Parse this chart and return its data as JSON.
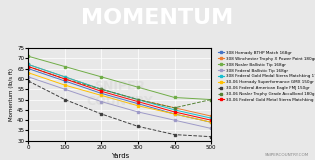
{
  "title": "MOMENTUM",
  "xlabel": "Yards",
  "ylabel": "Momentum (lb/s ft)",
  "background_title": "#5a5a5a",
  "background_plot": "#e8e8e8",
  "accent_bar": "#c0392b",
  "ylim": [
    30,
    75
  ],
  "xlim": [
    0,
    500
  ],
  "xticks": [
    0,
    100,
    200,
    300,
    400,
    500
  ],
  "yticks": [
    30,
    35,
    40,
    45,
    50,
    55,
    60,
    65,
    70,
    75
  ],
  "series": [
    {
      "label": "308 Hornady BTHP Match 168gr",
      "color": "#4472c4",
      "marker": "s",
      "dashed": false,
      "values": [
        65,
        59,
        53,
        48,
        43,
        39
      ]
    },
    {
      "label": "308 Winchester Trophy X Power Point 180gr",
      "color": "#ed7d31",
      "marker": "s",
      "dashed": false,
      "values": [
        67,
        61,
        55,
        50,
        46,
        42
      ]
    },
    {
      "label": "308 Nosler Ballistic Tip 168gr",
      "color": "#70ad47",
      "marker": "s",
      "dashed": false,
      "values": [
        71,
        66,
        61,
        56,
        51,
        50
      ]
    },
    {
      "label": "308 Federal Ballistic Tip 168gr",
      "color": "#9e9ac8",
      "marker": "s",
      "dashed": false,
      "values": [
        61,
        55,
        49,
        44,
        40,
        36
      ]
    },
    {
      "label": "308 Federal Gold Medal Sierra Matchking 175gr",
      "color": "#17becf",
      "marker": "s",
      "dashed": false,
      "values": [
        67,
        61,
        55,
        50,
        45,
        41
      ]
    },
    {
      "label": "30-06 Hornady Superformance GMX 150gr",
      "color": "#ffc000",
      "marker": "s",
      "dashed": false,
      "values": [
        63,
        57,
        52,
        47,
        43,
        39
      ]
    },
    {
      "label": "30-06 Federal American Eagle FMJ 150gr",
      "color": "#404040",
      "marker": "s",
      "dashed": true,
      "values": [
        59,
        50,
        43,
        37,
        33,
        32
      ]
    },
    {
      "label": "30-06 Nosler Trophy Grade AccuBond 180gr",
      "color": "#548235",
      "marker": "s",
      "dashed": true,
      "values": [
        66,
        60,
        55,
        50,
        46,
        50
      ]
    },
    {
      "label": "30-06 Federal Gold Metal Sierra Matchking 168gr",
      "color": "#ff0000",
      "marker": "s",
      "dashed": false,
      "values": [
        66,
        60,
        54,
        49,
        44,
        40
      ]
    }
  ],
  "watermark_text": "SNIPER\nCOUNTRY",
  "watermark_color": [
    0.7,
    0.7,
    0.7
  ],
  "watermark_alpha": 0.18,
  "footer_text": "SNIPERCOUNTRY.COM",
  "footer_color": "#888888"
}
